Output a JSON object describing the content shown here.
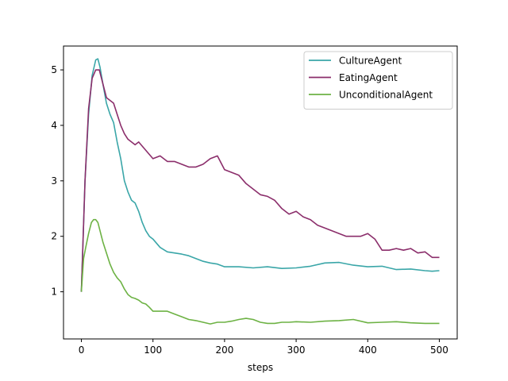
{
  "chart_data": {
    "type": "line",
    "title": "",
    "xlabel": "steps",
    "ylabel": "",
    "xlim": [
      -25,
      525
    ],
    "ylim": [
      0.15,
      5.43
    ],
    "xticks": [
      0,
      100,
      200,
      300,
      400,
      500
    ],
    "yticks": [
      1,
      2,
      3,
      4,
      5
    ],
    "grid": false,
    "legend_position": "top-right",
    "series": [
      {
        "name": "CultureAgent",
        "color": "#3aa6a8",
        "x": [
          0,
          5,
          10,
          15,
          20,
          23,
          26,
          30,
          35,
          40,
          45,
          50,
          55,
          60,
          65,
          70,
          75,
          80,
          85,
          90,
          95,
          100,
          110,
          120,
          130,
          140,
          150,
          160,
          170,
          180,
          190,
          200,
          220,
          240,
          260,
          280,
          300,
          320,
          340,
          360,
          380,
          400,
          420,
          440,
          460,
          480,
          490,
          500
        ],
        "y": [
          1.0,
          3.0,
          4.2,
          4.9,
          5.18,
          5.2,
          5.05,
          4.75,
          4.4,
          4.2,
          4.05,
          3.7,
          3.4,
          3.0,
          2.8,
          2.65,
          2.6,
          2.45,
          2.25,
          2.1,
          2.0,
          1.95,
          1.8,
          1.72,
          1.7,
          1.68,
          1.65,
          1.6,
          1.55,
          1.52,
          1.5,
          1.45,
          1.45,
          1.43,
          1.45,
          1.42,
          1.43,
          1.46,
          1.52,
          1.53,
          1.48,
          1.45,
          1.46,
          1.4,
          1.41,
          1.38,
          1.37,
          1.38
        ]
      },
      {
        "name": "EatingAgent",
        "color": "#8b2e6b",
        "x": [
          0,
          5,
          10,
          15,
          20,
          25,
          30,
          35,
          40,
          45,
          50,
          55,
          60,
          65,
          70,
          75,
          80,
          90,
          100,
          110,
          120,
          130,
          140,
          150,
          160,
          170,
          180,
          190,
          200,
          210,
          220,
          230,
          240,
          250,
          260,
          270,
          280,
          290,
          300,
          310,
          320,
          330,
          340,
          350,
          360,
          370,
          380,
          390,
          400,
          410,
          420,
          430,
          440,
          450,
          460,
          470,
          480,
          490,
          500
        ],
        "y": [
          1.0,
          3.0,
          4.3,
          4.85,
          5.0,
          5.0,
          4.75,
          4.5,
          4.45,
          4.4,
          4.2,
          4.0,
          3.85,
          3.75,
          3.7,
          3.65,
          3.7,
          3.55,
          3.4,
          3.45,
          3.35,
          3.35,
          3.3,
          3.25,
          3.25,
          3.3,
          3.4,
          3.45,
          3.2,
          3.15,
          3.1,
          2.95,
          2.85,
          2.75,
          2.72,
          2.65,
          2.5,
          2.4,
          2.45,
          2.35,
          2.3,
          2.2,
          2.15,
          2.1,
          2.05,
          2.0,
          2.0,
          2.0,
          2.05,
          1.95,
          1.75,
          1.75,
          1.78,
          1.75,
          1.78,
          1.7,
          1.72,
          1.62,
          1.62
        ]
      },
      {
        "name": "UnconditionalAgent",
        "color": "#6db244",
        "x": [
          0,
          3,
          6,
          10,
          14,
          17,
          20,
          23,
          26,
          30,
          35,
          40,
          45,
          50,
          55,
          60,
          65,
          70,
          75,
          80,
          85,
          90,
          95,
          100,
          110,
          120,
          130,
          140,
          150,
          160,
          170,
          180,
          190,
          200,
          210,
          220,
          230,
          240,
          250,
          260,
          270,
          280,
          290,
          300,
          320,
          340,
          360,
          380,
          400,
          420,
          440,
          460,
          480,
          500
        ],
        "y": [
          1.0,
          1.6,
          1.8,
          2.05,
          2.25,
          2.3,
          2.3,
          2.25,
          2.1,
          1.9,
          1.7,
          1.5,
          1.35,
          1.25,
          1.18,
          1.05,
          0.95,
          0.9,
          0.88,
          0.85,
          0.8,
          0.78,
          0.72,
          0.65,
          0.65,
          0.65,
          0.6,
          0.55,
          0.5,
          0.48,
          0.45,
          0.42,
          0.45,
          0.45,
          0.47,
          0.5,
          0.52,
          0.5,
          0.45,
          0.43,
          0.43,
          0.45,
          0.45,
          0.46,
          0.45,
          0.47,
          0.48,
          0.5,
          0.44,
          0.45,
          0.46,
          0.44,
          0.43,
          0.43
        ]
      }
    ]
  }
}
